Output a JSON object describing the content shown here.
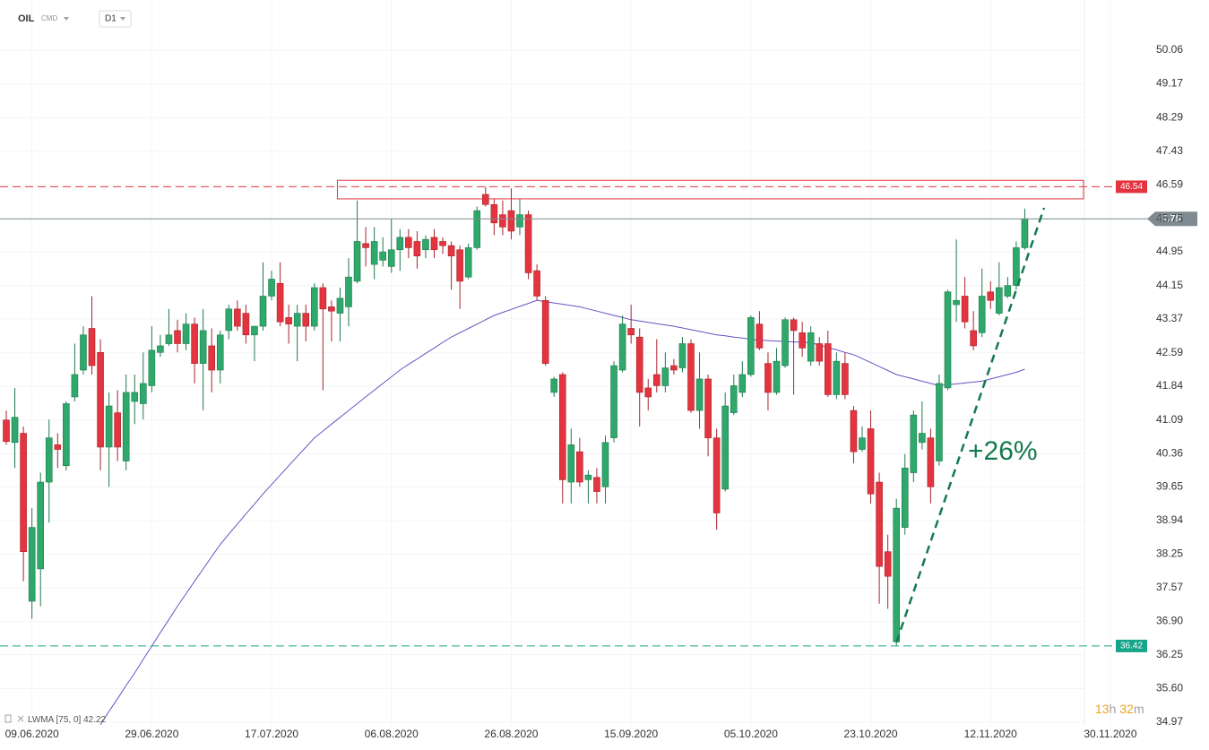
{
  "header": {
    "symbol": "OIL",
    "market": "CMD",
    "interval": "D1"
  },
  "chart_data": {
    "type": "candlestick",
    "log_scale": true,
    "grid": true,
    "up_color": "#2ea86b",
    "down_color": "#e3343f",
    "ylim": [
      34.9,
      51.42
    ],
    "yticks": [
      50.06,
      49.17,
      48.29,
      47.43,
      46.59,
      45.75,
      44.95,
      44.15,
      43.37,
      42.59,
      41.84,
      41.09,
      40.36,
      39.65,
      38.94,
      38.25,
      37.57,
      {
        "value": 36.9,
        "label": "36.90"
      },
      36.25,
      {
        "value": 35.6,
        "label": "35.60"
      },
      34.97
    ],
    "categories": [
      null,
      null,
      null,
      "09.06.2020",
      null,
      null,
      null,
      null,
      null,
      null,
      null,
      null,
      null,
      null,
      null,
      null,
      null,
      "29.06.2020",
      null,
      null,
      null,
      null,
      null,
      null,
      null,
      null,
      null,
      null,
      null,
      null,
      null,
      "17.07.2020",
      null,
      null,
      null,
      null,
      null,
      null,
      null,
      null,
      null,
      null,
      null,
      null,
      null,
      "06.08.2020",
      null,
      null,
      null,
      null,
      null,
      null,
      null,
      null,
      null,
      null,
      null,
      null,
      null,
      "26.08.2020",
      null,
      null,
      null,
      null,
      null,
      null,
      null,
      null,
      null,
      null,
      null,
      null,
      null,
      "15.09.2020",
      null,
      null,
      null,
      null,
      null,
      null,
      null,
      null,
      null,
      null,
      null,
      null,
      null,
      "05.10.2020",
      null,
      null,
      null,
      null,
      null,
      null,
      null,
      null,
      null,
      null,
      null,
      null,
      null,
      "23.10.2020",
      null,
      null,
      null,
      null,
      null,
      null,
      null,
      null,
      null,
      null,
      null,
      null,
      null,
      "12.11.2020",
      null,
      null,
      null,
      null,
      null,
      null,
      null,
      null,
      null,
      null,
      null,
      null,
      null,
      "30.11.2020"
    ],
    "open": [
      41.09,
      40.6,
      40.8,
      37.3,
      37.95,
      39.75,
      40.55,
      40.1,
      41.6,
      42.2,
      43.15,
      42.6,
      40.5,
      41.25,
      40.2,
      41.5,
      41.45,
      41.85,
      42.6,
      42.8,
      43.1,
      42.8,
      43.25,
      42.35,
      42.75,
      42.2,
      43.1,
      43.6,
      43.5,
      43.0,
      43.2,
      43.9,
      44.2,
      43.4,
      43.2,
      43.5,
      43.2,
      44.1,
      43.65,
      43.5,
      43.65,
      44.25,
      45.15,
      44.65,
      44.75,
      44.6,
      45.0,
      45.3,
      45.2,
      45.0,
      45.3,
      45.2,
      45.1,
      45.0,
      44.35,
      45.05,
      46.35,
      46.1,
      45.85,
      45.95,
      45.55,
      45.85,
      44.5,
      43.8,
      41.7,
      42.1,
      39.75,
      40.4,
      39.8,
      39.85,
      39.65,
      40.7,
      42.2,
      43.15,
      42.95,
      41.8,
      42.1,
      41.85,
      42.3,
      42.25,
      42.8,
      41.3,
      42.0,
      40.7,
      39.6,
      41.25,
      41.7,
      42.1,
      43.25,
      42.35,
      41.7,
      42.3,
      43.35,
      43.05,
      42.4,
      42.8,
      42.8,
      41.65,
      42.35,
      41.3,
      40.45,
      40.9,
      39.75,
      38.3,
      36.5,
      38.8,
      39.95,
      40.6,
      40.7,
      40.2,
      41.8,
      43.7,
      43.9,
      43.1,
      43.05,
      44.0,
      43.5,
      43.9,
      44.15,
      45.05,
      null,
      null,
      null,
      null,
      null,
      null,
      null,
      null,
      null,
      null
    ],
    "high": [
      41.3,
      41.8,
      40.95,
      39.2,
      39.95,
      41.1,
      40.8,
      41.5,
      42.8,
      43.2,
      43.9,
      42.9,
      41.7,
      41.75,
      42.1,
      42.1,
      42.6,
      43.2,
      43.0,
      43.6,
      43.35,
      43.5,
      43.4,
      43.6,
      43.15,
      43.1,
      43.7,
      43.8,
      43.7,
      43.2,
      44.7,
      44.5,
      44.7,
      43.7,
      43.7,
      43.7,
      44.2,
      44.2,
      43.8,
      44.1,
      44.8,
      46.2,
      45.55,
      45.55,
      45.3,
      45.75,
      45.5,
      45.5,
      45.45,
      45.35,
      45.5,
      45.3,
      45.2,
      45.1,
      45.15,
      46.05,
      46.54,
      46.25,
      46.2,
      46.5,
      46.25,
      45.95,
      44.65,
      43.9,
      42.05,
      42.15,
      40.9,
      40.7,
      40.0,
      40.05,
      40.75,
      42.4,
      43.45,
      43.7,
      43.15,
      42.0,
      42.9,
      42.6,
      42.45,
      42.95,
      42.9,
      42.6,
      42.1,
      40.9,
      41.7,
      42.1,
      42.4,
      43.45,
      43.55,
      42.6,
      42.7,
      43.4,
      43.4,
      43.3,
      43.2,
      42.95,
      43.1,
      42.6,
      42.6,
      41.4,
      40.95,
      41.3,
      39.95,
      38.65,
      39.4,
      40.35,
      41.3,
      41.5,
      40.9,
      42.1,
      44.05,
      45.25,
      44.35,
      43.55,
      44.55,
      44.25,
      44.7,
      44.35,
      45.2,
      46.0,
      null,
      null,
      null,
      null,
      null,
      null,
      null,
      null,
      null,
      null
    ],
    "low": [
      40.55,
      40.05,
      37.7,
      36.95,
      37.2,
      38.9,
      40.05,
      40.0,
      41.5,
      42.1,
      42.1,
      40.0,
      39.65,
      40.2,
      40.0,
      41.0,
      41.1,
      41.7,
      42.5,
      42.75,
      42.6,
      42.65,
      41.9,
      41.3,
      41.7,
      41.9,
      42.9,
      43.1,
      42.8,
      42.4,
      43.1,
      43.8,
      43.2,
      42.8,
      42.4,
      42.85,
      43.1,
      41.75,
      42.85,
      42.85,
      43.2,
      44.2,
      44.6,
      44.3,
      44.6,
      44.45,
      44.5,
      44.8,
      44.55,
      44.8,
      44.8,
      44.9,
      44.05,
      43.6,
      44.3,
      45.0,
      46.05,
      45.35,
      45.35,
      45.25,
      45.35,
      44.3,
      43.8,
      42.3,
      41.6,
      39.3,
      39.3,
      39.65,
      39.3,
      39.3,
      39.3,
      40.6,
      42.15,
      42.8,
      40.95,
      41.3,
      41.7,
      41.7,
      42.1,
      42.15,
      41.25,
      40.9,
      40.3,
      38.75,
      39.55,
      41.2,
      41.6,
      42.05,
      42.65,
      41.3,
      41.65,
      42.25,
      41.65,
      42.5,
      42.3,
      42.3,
      41.6,
      41.55,
      41.55,
      40.15,
      40.4,
      39.3,
      37.25,
      37.15,
      36.42,
      38.65,
      39.75,
      40.45,
      39.3,
      40.1,
      41.75,
      43.3,
      43.15,
      42.65,
      42.95,
      43.6,
      43.45,
      43.85,
      44.05,
      45.0,
      null,
      null,
      null,
      null,
      null,
      null,
      null,
      null,
      null,
      null
    ],
    "close": [
      40.62,
      41.15,
      38.3,
      38.8,
      39.75,
      40.7,
      40.45,
      41.45,
      42.1,
      43.0,
      42.3,
      40.5,
      41.4,
      40.5,
      41.7,
      41.7,
      41.9,
      42.65,
      42.75,
      43.0,
      42.8,
      43.25,
      42.35,
      43.1,
      42.2,
      43.0,
      43.6,
      43.2,
      43.0,
      43.2,
      43.9,
      44.3,
      43.3,
      43.25,
      43.5,
      43.2,
      44.1,
      43.6,
      43.55,
      43.85,
      44.35,
      45.2,
      45.05,
      45.2,
      44.95,
      45.0,
      45.3,
      45.05,
      44.85,
      45.25,
      45.0,
      45.1,
      44.85,
      44.25,
      45.05,
      45.95,
      46.1,
      45.65,
      45.55,
      45.45,
      45.85,
      44.45,
      43.9,
      42.35,
      42.0,
      39.8,
      40.55,
      39.75,
      39.9,
      39.55,
      40.6,
      42.3,
      43.25,
      43.0,
      41.7,
      41.6,
      41.85,
      42.25,
      42.2,
      42.8,
      41.3,
      42.0,
      40.7,
      39.1,
      41.4,
      41.85,
      42.1,
      43.4,
      42.7,
      41.7,
      42.4,
      43.35,
      43.1,
      42.7,
      43.05,
      42.4,
      41.65,
      42.4,
      41.65,
      40.4,
      40.7,
      39.5,
      38.0,
      37.8,
      39.2,
      40.05,
      41.2,
      40.8,
      39.65,
      41.9,
      44.0,
      43.8,
      43.3,
      42.75,
      43.9,
      43.8,
      44.1,
      44.15,
      45.05,
      45.75,
      null,
      null,
      null,
      null,
      null,
      null,
      null,
      null,
      null,
      null
    ],
    "lwma": {
      "label": "LWMA [75, 0]",
      "last": 42.22,
      "color": "#6f4fc4",
      "values": [
        null,
        null,
        null,
        null,
        null,
        null,
        null,
        null,
        null,
        null,
        null,
        34.92,
        35.17,
        35.41,
        35.66,
        35.9,
        36.16,
        36.42,
        36.68,
        36.94,
        37.2,
        37.45,
        37.7,
        37.95,
        38.2,
        38.45,
        38.66,
        38.87,
        39.08,
        39.29,
        39.5,
        39.7,
        39.9,
        40.1,
        40.3,
        40.5,
        40.7,
        40.85,
        41.0,
        41.15,
        41.3,
        41.45,
        41.6,
        41.75,
        41.9,
        42.05,
        42.2,
        42.33,
        42.45,
        42.58,
        42.7,
        42.83,
        42.95,
        43.05,
        43.15,
        43.25,
        43.35,
        43.45,
        43.52,
        43.59,
        43.66,
        43.73,
        43.8,
        43.77,
        43.74,
        43.71,
        43.68,
        43.65,
        43.6,
        43.55,
        43.5,
        43.45,
        43.4,
        43.35,
        43.32,
        43.29,
        43.26,
        43.23,
        43.2,
        43.16,
        43.12,
        43.08,
        43.04,
        43.0,
        42.98,
        42.95,
        42.93,
        42.9,
        42.88,
        42.87,
        42.86,
        42.85,
        42.84,
        42.83,
        42.82,
        42.77,
        42.71,
        42.66,
        42.6,
        42.55,
        42.46,
        42.37,
        42.28,
        42.19,
        42.1,
        42.05,
        42.0,
        41.95,
        41.9,
        41.85,
        41.87,
        41.89,
        41.91,
        41.93,
        41.95,
        42.0,
        42.05,
        42.1,
        42.15,
        42.22,
        null,
        null,
        null,
        null,
        null,
        null,
        null,
        null,
        null,
        null
      ]
    },
    "levels": [
      {
        "value": 46.54,
        "color": "#e3343f"
      },
      {
        "value": 36.42,
        "color": "#17a589"
      }
    ],
    "current_price": {
      "value": 45.75,
      "color": "#7f8b90"
    },
    "zone": {
      "low": 46.24,
      "high": 46.7,
      "color": "#e3343f"
    },
    "annotation": {
      "text": "+26%",
      "color": "#137a4e"
    },
    "countdown": [
      "13",
      "h",
      "32",
      "m"
    ]
  }
}
